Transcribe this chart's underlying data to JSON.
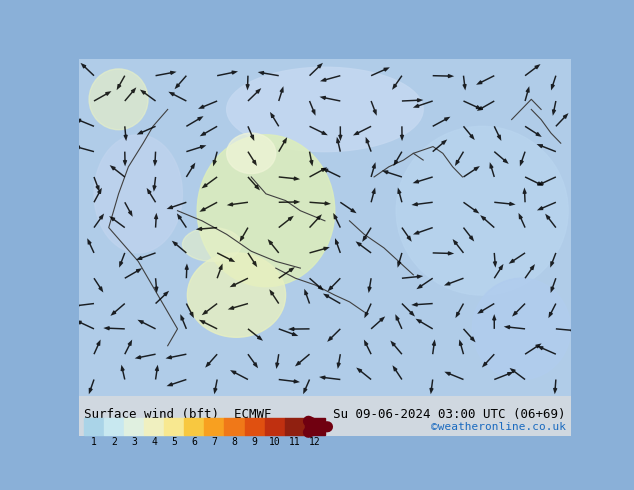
{
  "title_left": "Surface wind (bft)  ECMWF",
  "title_right": "Su 09-06-2024 03:00 UTC (06+69)",
  "subtitle_right": "©weatheronline.co.uk",
  "colorbar_label": "",
  "colorbar_ticks": [
    1,
    2,
    3,
    4,
    5,
    6,
    7,
    8,
    9,
    10,
    11,
    12
  ],
  "colorbar_colors": [
    "#aad4e8",
    "#c8e8f0",
    "#e0f0e0",
    "#f0f0c0",
    "#f8e890",
    "#f8c840",
    "#f8a020",
    "#f07818",
    "#e05010",
    "#c03010",
    "#902010",
    "#700010"
  ],
  "bg_color": "#a0b8e0",
  "fig_width": 6.34,
  "fig_height": 4.9,
  "dpi": 100,
  "map_bg_colors": {
    "light_blue": "#aac8e8",
    "lighter_blue": "#c0d8f0",
    "pale_green": "#c8e8c0",
    "yellow_green": "#e8f0b0",
    "light_yellow": "#f8f0c0"
  }
}
